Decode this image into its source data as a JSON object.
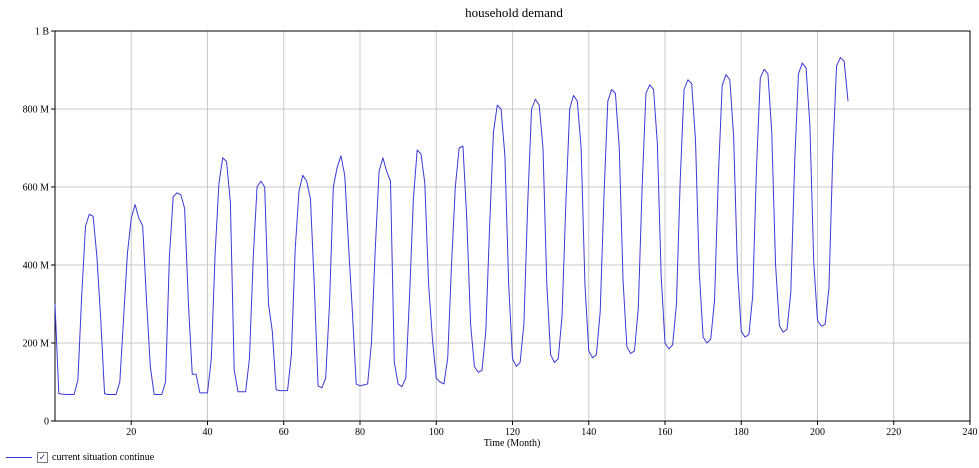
{
  "chart_data": {
    "type": "line",
    "title": "household demand",
    "xlabel": "Time (Month)",
    "ylabel": "",
    "xlim": [
      0,
      240
    ],
    "ylim": [
      0,
      1000000000
    ],
    "x_ticks": [
      20,
      40,
      60,
      80,
      100,
      120,
      140,
      160,
      180,
      200,
      220,
      240
    ],
    "y_ticks": [
      {
        "value": 0,
        "label": "0"
      },
      {
        "value": 200000000,
        "label": "200 M"
      },
      {
        "value": 400000000,
        "label": "400 M"
      },
      {
        "value": 600000000,
        "label": "600 M"
      },
      {
        "value": 800000000,
        "label": "800 M"
      },
      {
        "value": 1000000000,
        "label": "1 B"
      }
    ],
    "grid": true,
    "legend_position": "bottom-left",
    "series": [
      {
        "name": "current situation continue",
        "color": "#3a3ad6",
        "points": [
          [
            0,
            300000000
          ],
          [
            1,
            70000000
          ],
          [
            3,
            68000000
          ],
          [
            5,
            68000000
          ],
          [
            6,
            105000000
          ],
          [
            7,
            320000000
          ],
          [
            8,
            500000000
          ],
          [
            9,
            530000000
          ],
          [
            10,
            525000000
          ],
          [
            11,
            420000000
          ],
          [
            12,
            260000000
          ],
          [
            13,
            70000000
          ],
          [
            14,
            68000000
          ],
          [
            16,
            68000000
          ],
          [
            17,
            100000000
          ],
          [
            19,
            430000000
          ],
          [
            20,
            520000000
          ],
          [
            21,
            555000000
          ],
          [
            22,
            520000000
          ],
          [
            23,
            500000000
          ],
          [
            24,
            310000000
          ],
          [
            25,
            140000000
          ],
          [
            26,
            68000000
          ],
          [
            28,
            68000000
          ],
          [
            29,
            100000000
          ],
          [
            30,
            420000000
          ],
          [
            31,
            575000000
          ],
          [
            32,
            585000000
          ],
          [
            33,
            580000000
          ],
          [
            34,
            545000000
          ],
          [
            35,
            300000000
          ],
          [
            36,
            120000000
          ],
          [
            37,
            120000000
          ],
          [
            38,
            72000000
          ],
          [
            40,
            72000000
          ],
          [
            41,
            160000000
          ],
          [
            42,
            430000000
          ],
          [
            43,
            610000000
          ],
          [
            44,
            675000000
          ],
          [
            45,
            665000000
          ],
          [
            46,
            560000000
          ],
          [
            47,
            130000000
          ],
          [
            48,
            75000000
          ],
          [
            50,
            75000000
          ],
          [
            51,
            160000000
          ],
          [
            52,
            420000000
          ],
          [
            53,
            600000000
          ],
          [
            54,
            615000000
          ],
          [
            55,
            600000000
          ],
          [
            56,
            300000000
          ],
          [
            57,
            230000000
          ],
          [
            58,
            80000000
          ],
          [
            59,
            78000000
          ],
          [
            61,
            78000000
          ],
          [
            62,
            170000000
          ],
          [
            63,
            440000000
          ],
          [
            64,
            590000000
          ],
          [
            65,
            630000000
          ],
          [
            66,
            615000000
          ],
          [
            67,
            570000000
          ],
          [
            68,
            350000000
          ],
          [
            69,
            90000000
          ],
          [
            70,
            85000000
          ],
          [
            71,
            110000000
          ],
          [
            72,
            300000000
          ],
          [
            73,
            600000000
          ],
          [
            74,
            650000000
          ],
          [
            75,
            680000000
          ],
          [
            76,
            630000000
          ],
          [
            77,
            450000000
          ],
          [
            78,
            280000000
          ],
          [
            79,
            95000000
          ],
          [
            80,
            90000000
          ],
          [
            82,
            95000000
          ],
          [
            83,
            200000000
          ],
          [
            84,
            440000000
          ],
          [
            85,
            640000000
          ],
          [
            86,
            675000000
          ],
          [
            87,
            640000000
          ],
          [
            88,
            615000000
          ],
          [
            89,
            150000000
          ],
          [
            90,
            95000000
          ],
          [
            91,
            88000000
          ],
          [
            92,
            110000000
          ],
          [
            93,
            320000000
          ],
          [
            94,
            570000000
          ],
          [
            95,
            695000000
          ],
          [
            96,
            685000000
          ],
          [
            97,
            610000000
          ],
          [
            98,
            350000000
          ],
          [
            99,
            210000000
          ],
          [
            100,
            110000000
          ],
          [
            101,
            100000000
          ],
          [
            102,
            95000000
          ],
          [
            103,
            160000000
          ],
          [
            104,
            400000000
          ],
          [
            105,
            600000000
          ],
          [
            106,
            700000000
          ],
          [
            107,
            705000000
          ],
          [
            108,
            520000000
          ],
          [
            109,
            250000000
          ],
          [
            110,
            140000000
          ],
          [
            111,
            125000000
          ],
          [
            112,
            130000000
          ],
          [
            113,
            230000000
          ],
          [
            114,
            500000000
          ],
          [
            115,
            740000000
          ],
          [
            116,
            810000000
          ],
          [
            117,
            800000000
          ],
          [
            118,
            680000000
          ],
          [
            119,
            350000000
          ],
          [
            120,
            160000000
          ],
          [
            121,
            140000000
          ],
          [
            122,
            150000000
          ],
          [
            123,
            250000000
          ],
          [
            124,
            560000000
          ],
          [
            125,
            800000000
          ],
          [
            126,
            825000000
          ],
          [
            127,
            810000000
          ],
          [
            128,
            700000000
          ],
          [
            129,
            350000000
          ],
          [
            130,
            170000000
          ],
          [
            131,
            150000000
          ],
          [
            132,
            160000000
          ],
          [
            133,
            270000000
          ],
          [
            134,
            560000000
          ],
          [
            135,
            800000000
          ],
          [
            136,
            835000000
          ],
          [
            137,
            820000000
          ],
          [
            138,
            700000000
          ],
          [
            139,
            350000000
          ],
          [
            140,
            180000000
          ],
          [
            141,
            162000000
          ],
          [
            142,
            170000000
          ],
          [
            143,
            280000000
          ],
          [
            144,
            580000000
          ],
          [
            145,
            820000000
          ],
          [
            146,
            850000000
          ],
          [
            147,
            840000000
          ],
          [
            148,
            700000000
          ],
          [
            149,
            360000000
          ],
          [
            150,
            190000000
          ],
          [
            151,
            173000000
          ],
          [
            152,
            180000000
          ],
          [
            153,
            290000000
          ],
          [
            154,
            600000000
          ],
          [
            155,
            840000000
          ],
          [
            156,
            862000000
          ],
          [
            157,
            850000000
          ],
          [
            158,
            710000000
          ],
          [
            159,
            370000000
          ],
          [
            160,
            200000000
          ],
          [
            161,
            185000000
          ],
          [
            162,
            195000000
          ],
          [
            163,
            300000000
          ],
          [
            164,
            620000000
          ],
          [
            165,
            850000000
          ],
          [
            166,
            875000000
          ],
          [
            167,
            865000000
          ],
          [
            168,
            720000000
          ],
          [
            169,
            380000000
          ],
          [
            170,
            215000000
          ],
          [
            171,
            200000000
          ],
          [
            172,
            210000000
          ],
          [
            173,
            310000000
          ],
          [
            174,
            630000000
          ],
          [
            175,
            860000000
          ],
          [
            176,
            888000000
          ],
          [
            177,
            875000000
          ],
          [
            178,
            730000000
          ],
          [
            179,
            390000000
          ],
          [
            180,
            230000000
          ],
          [
            181,
            215000000
          ],
          [
            182,
            222000000
          ],
          [
            183,
            320000000
          ],
          [
            184,
            650000000
          ],
          [
            185,
            880000000
          ],
          [
            186,
            902000000
          ],
          [
            187,
            890000000
          ],
          [
            188,
            740000000
          ],
          [
            189,
            400000000
          ],
          [
            190,
            245000000
          ],
          [
            191,
            228000000
          ],
          [
            192,
            235000000
          ],
          [
            193,
            330000000
          ],
          [
            194,
            660000000
          ],
          [
            195,
            890000000
          ],
          [
            196,
            918000000
          ],
          [
            197,
            905000000
          ],
          [
            198,
            760000000
          ],
          [
            199,
            410000000
          ],
          [
            200,
            258000000
          ],
          [
            201,
            243000000
          ],
          [
            202,
            248000000
          ],
          [
            203,
            340000000
          ],
          [
            204,
            680000000
          ],
          [
            205,
            910000000
          ],
          [
            206,
            932000000
          ],
          [
            207,
            922000000
          ],
          [
            208,
            820000000
          ]
        ]
      }
    ]
  },
  "legend": {
    "items": [
      {
        "label": "current situation continue",
        "checked": true,
        "check_mark": "✓"
      }
    ]
  }
}
